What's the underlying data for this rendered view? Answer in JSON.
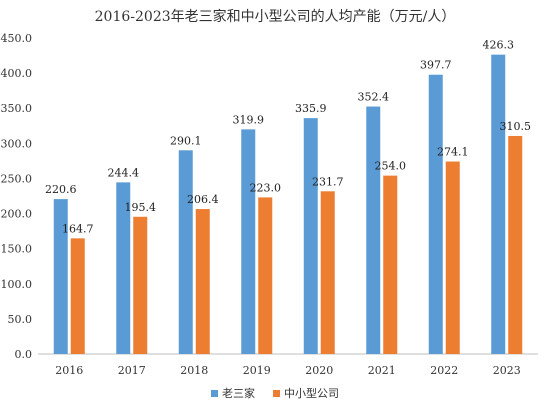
{
  "chart_data": {
    "type": "bar",
    "title": "2016-2023年老三家和中小型公司的人均产能（万元/人）",
    "categories": [
      "2016",
      "2017",
      "2018",
      "2019",
      "2020",
      "2021",
      "2022",
      "2023"
    ],
    "series": [
      {
        "name": "老三家",
        "color": "#5b9bd5",
        "values": [
          220.6,
          244.4,
          290.1,
          319.9,
          335.9,
          352.4,
          397.7,
          426.3
        ],
        "value_labels": [
          "220.6",
          "244.4",
          "290.1",
          "319.9",
          "335.9",
          "352.4",
          "397.7",
          "426.3"
        ]
      },
      {
        "name": "中小型公司",
        "color": "#ed7d31",
        "values": [
          164.7,
          195.4,
          206.4,
          223.0,
          231.7,
          254.0,
          274.1,
          310.5
        ],
        "value_labels": [
          "164.7",
          "195.4",
          "206.4",
          "223.0",
          "231.7",
          "254.0",
          "274.1",
          "310.5"
        ]
      }
    ],
    "ylim": [
      0,
      450
    ],
    "yticks": [
      "0.0",
      "50.0",
      "100.0",
      "150.0",
      "200.0",
      "250.0",
      "300.0",
      "350.0",
      "400.0",
      "450.0"
    ],
    "ytick_values": [
      0,
      50,
      100,
      150,
      200,
      250,
      300,
      350,
      400,
      450
    ],
    "xlabel": "",
    "ylabel": "",
    "grid": false,
    "legend_position": "bottom"
  }
}
